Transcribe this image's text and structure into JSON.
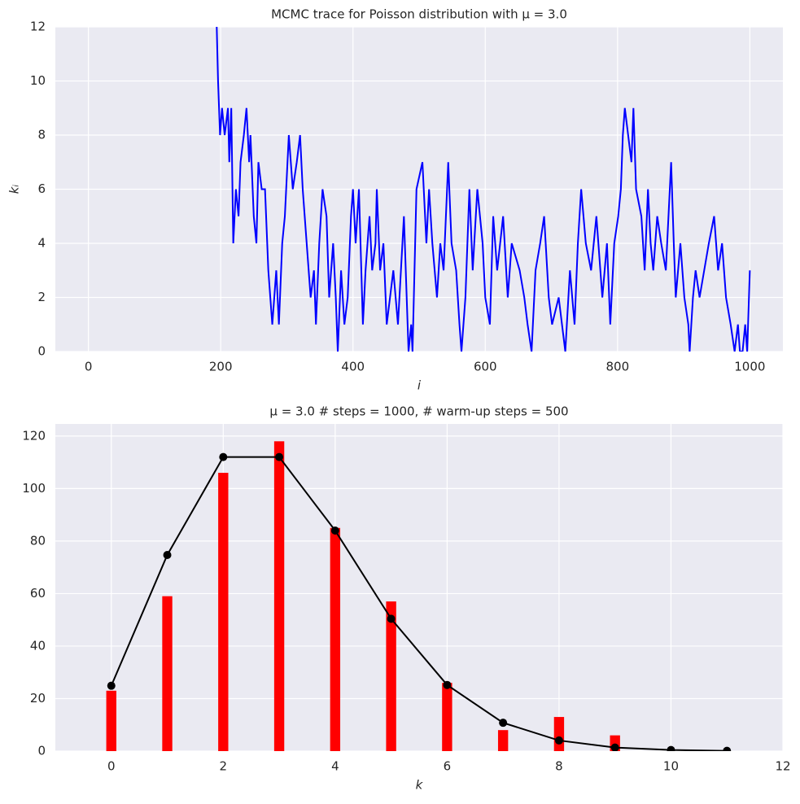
{
  "chart_data": [
    {
      "type": "line",
      "title": "MCMC trace for Poisson distribution with μ = 3.0",
      "xlabel": "i",
      "ylabel": "kᵢ",
      "x": [
        194,
        196,
        199,
        202,
        206,
        211,
        213,
        216,
        219,
        223,
        227,
        230,
        235,
        239,
        243,
        245,
        250,
        254,
        257,
        262,
        267,
        272,
        278,
        284,
        288,
        293,
        297,
        303,
        309,
        315,
        320,
        324,
        327,
        336,
        341,
        344,
        349,
        354,
        360,
        364,
        370,
        374,
        377,
        382,
        387,
        392,
        397,
        400,
        404,
        409,
        415,
        419,
        425,
        429,
        434,
        436,
        441,
        446,
        451,
        456,
        461,
        468,
        477,
        484,
        488,
        490,
        496,
        505,
        511,
        515,
        520,
        527,
        532,
        537,
        544,
        549,
        556,
        561,
        564,
        570,
        576,
        581,
        588,
        596,
        600,
        607,
        612,
        618,
        627,
        634,
        640,
        652,
        659,
        664,
        670,
        676,
        683,
        689,
        696,
        701,
        711,
        716,
        721,
        728,
        735,
        740,
        745,
        752,
        760,
        768,
        777,
        784,
        789,
        795,
        801,
        805,
        808,
        811,
        816,
        821,
        824,
        828,
        836,
        841,
        846,
        850,
        854,
        860,
        866,
        873,
        879,
        881,
        885,
        888,
        895,
        901,
        907,
        909,
        914,
        918,
        924,
        931,
        938,
        946,
        952,
        958,
        964,
        971,
        977,
        982,
        985,
        989,
        993,
        996,
        1000
      ],
      "values": [
        12,
        10,
        8,
        9,
        8,
        9,
        7,
        9,
        4,
        6,
        5,
        7,
        8,
        9,
        7,
        8,
        5,
        4,
        7,
        6,
        6,
        3,
        1,
        3,
        1,
        4,
        5,
        8,
        6,
        7,
        8,
        6,
        5,
        2,
        3,
        1,
        4,
        6,
        5,
        2,
        4,
        2,
        0,
        3,
        1,
        2,
        5,
        6,
        4,
        6,
        1,
        3,
        5,
        3,
        4,
        6,
        3,
        4,
        1,
        2,
        3,
        1,
        5,
        0,
        1,
        0,
        6,
        7,
        4,
        6,
        4,
        2,
        4,
        3,
        7,
        4,
        3,
        1,
        0,
        2,
        6,
        3,
        6,
        4,
        2,
        1,
        5,
        3,
        5,
        2,
        4,
        3,
        2,
        1,
        0,
        3,
        4,
        5,
        2,
        1,
        2,
        1,
        0,
        3,
        1,
        4,
        6,
        4,
        3,
        5,
        2,
        4,
        1,
        4,
        5,
        6,
        8,
        9,
        8,
        7,
        9,
        6,
        5,
        3,
        6,
        4,
        3,
        5,
        4,
        3,
        6,
        7,
        4,
        2,
        4,
        2,
        1,
        0,
        2,
        3,
        2,
        3,
        4,
        5,
        3,
        4,
        2,
        1,
        0,
        1,
        0,
        0,
        1,
        0,
        3
      ],
      "color": "#0000ff",
      "xlim": [
        -50,
        1050
      ],
      "ylim": [
        0,
        12
      ],
      "xticks": [
        0,
        200,
        400,
        600,
        800,
        1000
      ],
      "yticks": [
        0,
        2,
        4,
        6,
        8,
        10,
        12
      ],
      "grid": true
    },
    {
      "type": "bar",
      "title": "μ = 3.0  # steps = 1000, # warm-up steps = 500",
      "xlabel": "k",
      "x": [
        0,
        1,
        2,
        3,
        4,
        5,
        6,
        7,
        8,
        9
      ],
      "values": [
        23,
        59,
        106,
        118,
        85,
        57,
        26,
        8,
        13,
        6
      ],
      "color": "#ff0000",
      "overlay": {
        "type": "line",
        "x": [
          0,
          1,
          2,
          3,
          4,
          5,
          6,
          7,
          8,
          9,
          10,
          11
        ],
        "values": [
          24.9,
          74.7,
          112.0,
          112.0,
          84.0,
          50.4,
          25.2,
          10.8,
          4.05,
          1.35,
          0.41,
          0.11
        ],
        "color": "#000000"
      },
      "xlim": [
        -1,
        12
      ],
      "ylim": [
        0,
        124.6
      ],
      "xticks": [
        0,
        2,
        4,
        6,
        8,
        10,
        12
      ],
      "yticks": [
        0,
        20,
        40,
        60,
        80,
        100,
        120
      ],
      "grid": true
    }
  ]
}
